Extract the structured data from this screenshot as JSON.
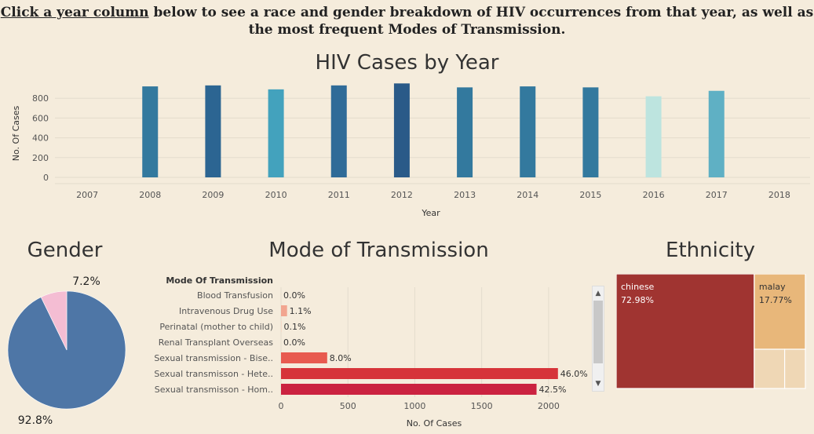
{
  "instruction": {
    "link_text": "Click a year column",
    "rest_text": " below to see a race and gender breakdown of HIV occurrences from that year, as well as the most frequent Modes of Transmission."
  },
  "colors": {
    "background": "#f5ecdc",
    "gender_male": "#4e76a6",
    "gender_female": "#f4bdd3",
    "chinese": "#a03431",
    "malay": "#e8b77a",
    "others": "#efd7b5"
  },
  "chart_data": [
    {
      "type": "bar",
      "title": "HIV Cases by Year",
      "xlabel": "Year",
      "ylabel": "No. Of Cases",
      "categories": [
        "2007",
        "2008",
        "2009",
        "2010",
        "2011",
        "2012",
        "2013",
        "2014",
        "2015",
        "2016",
        "2017",
        "2018"
      ],
      "values": [
        null,
        920,
        930,
        890,
        930,
        950,
        910,
        920,
        910,
        820,
        875,
        null
      ],
      "bar_colors": [
        null,
        "#33799e",
        "#2c6592",
        "#43a2bd",
        "#2f6b98",
        "#2a5a88",
        "#33799e",
        "#33799e",
        "#33799e",
        "#bde4df",
        "#5fb0c4",
        null
      ],
      "yticks": [
        "0",
        "200",
        "400",
        "600",
        "800"
      ],
      "ylim": [
        0,
        1000
      ],
      "grid": true
    },
    {
      "type": "pie",
      "title": "Gender",
      "slices": [
        {
          "label": "92.8%",
          "value": 92.8,
          "color": "#4e76a6"
        },
        {
          "label": "7.2%",
          "value": 7.2,
          "color": "#f4bdd3"
        }
      ]
    },
    {
      "type": "bar",
      "orientation": "horizontal",
      "title": "Mode of Transmission",
      "category_header": "Mode Of Transmission",
      "xlabel": "No. Of Cases",
      "categories": [
        "Blood Transfusion",
        "Intravenous Drug Use",
        "Perinatal (mother to child)",
        "Renal Transplant Overseas",
        "Sexual transmission - Bise..",
        "Sexual transmisson - Hete..",
        "Sexual transmisson - Hom.."
      ],
      "values": [
        0,
        45,
        3,
        0,
        345,
        2070,
        1910
      ],
      "value_labels": [
        "0.0%",
        "1.1%",
        "0.1%",
        "0.0%",
        "8.0%",
        "46.0%",
        "42.5%"
      ],
      "bar_colors": [
        "#f7c9b6",
        "#f2a58f",
        "#f7c9b6",
        "#f7c9b6",
        "#e85a4f",
        "#d6343a",
        "#cb2240"
      ],
      "xticks": [
        "0",
        "500",
        "1000",
        "1500",
        "2000"
      ],
      "xlim": [
        0,
        2300
      ],
      "grid": true
    },
    {
      "type": "treemap",
      "title": "Ethnicity",
      "cells": [
        {
          "label": "chinese",
          "pct": "72.98%",
          "value": 72.98,
          "color": "#a03431"
        },
        {
          "label": "malay",
          "pct": "17.77%",
          "value": 17.77,
          "color": "#e8b77a"
        },
        {
          "label": "",
          "pct": "",
          "value": 5.5,
          "color": "#efd7b5"
        },
        {
          "label": "",
          "pct": "",
          "value": 3.75,
          "color": "#efd7b5"
        }
      ]
    }
  ]
}
